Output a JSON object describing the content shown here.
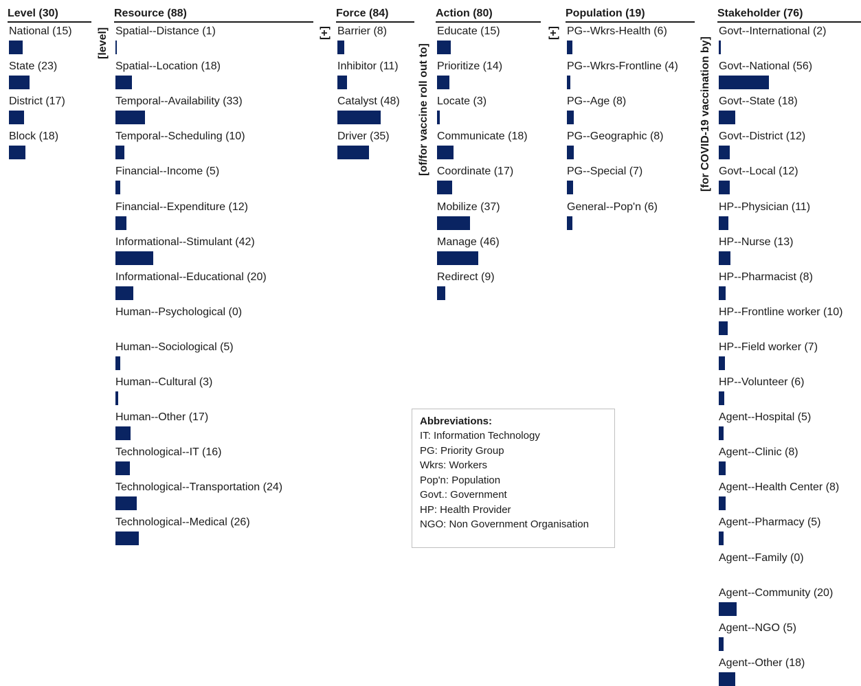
{
  "colors": {
    "bar": "#0a2462",
    "text": "#1a1a1a",
    "rule": "#1a1a1a",
    "box_border": "#bfbfbf"
  },
  "columns": [
    {
      "id": "level",
      "header": "Level (30)",
      "items": [
        {
          "label": "National (15)",
          "value": 15
        },
        {
          "label": "State (23)",
          "value": 23
        },
        {
          "label": "District (17)",
          "value": 17
        },
        {
          "label": "Block (18)",
          "value": 18
        }
      ]
    },
    {
      "id": "resource",
      "header": "Resource (88)",
      "items": [
        {
          "label": "Spatial--Distance (1)",
          "value": 1
        },
        {
          "label": "Spatial--Location (18)",
          "value": 18
        },
        {
          "label": "Temporal--Availability (33)",
          "value": 33
        },
        {
          "label": "Temporal--Scheduling (10)",
          "value": 10
        },
        {
          "label": "Financial--Income (5)",
          "value": 5
        },
        {
          "label": "Financial--Expenditure (12)",
          "value": 12
        },
        {
          "label": "Informational--Stimulant (42)",
          "value": 42
        },
        {
          "label": "Informational--Educational (20)",
          "value": 20
        },
        {
          "label": "Human--Psychological (0)",
          "value": 0
        },
        {
          "label": "Human--Sociological (5)",
          "value": 5
        },
        {
          "label": "Human--Cultural (3)",
          "value": 3
        },
        {
          "label": "Human--Other (17)",
          "value": 17
        },
        {
          "label": "Technological--IT (16)",
          "value": 16
        },
        {
          "label": "Technological--Transportation (24)",
          "value": 24
        },
        {
          "label": "Technological--Medical (26)",
          "value": 26
        }
      ]
    },
    {
      "id": "force",
      "header": "Force (84)",
      "items": [
        {
          "label": "Barrier (8)",
          "value": 8
        },
        {
          "label": "Inhibitor (11)",
          "value": 11
        },
        {
          "label": "Catalyst (48)",
          "value": 48
        },
        {
          "label": "Driver (35)",
          "value": 35
        }
      ]
    },
    {
      "id": "action",
      "header": "Action (80)",
      "items": [
        {
          "label": "Educate (15)",
          "value": 15
        },
        {
          "label": "Prioritize (14)",
          "value": 14
        },
        {
          "label": "Locate (3)",
          "value": 3
        },
        {
          "label": "Communicate (18)",
          "value": 18
        },
        {
          "label": "Coordinate (17)",
          "value": 17
        },
        {
          "label": "Mobilize (37)",
          "value": 37
        },
        {
          "label": "Manage (46)",
          "value": 46
        },
        {
          "label": "Redirect (9)",
          "value": 9
        }
      ]
    },
    {
      "id": "population",
      "header": "Population (19)",
      "items": [
        {
          "label": "PG--Wkrs-Health (6)",
          "value": 6
        },
        {
          "label": "PG--Wkrs-Frontline (4)",
          "value": 4
        },
        {
          "label": "PG--Age (8)",
          "value": 8
        },
        {
          "label": "PG--Geographic (8)",
          "value": 8
        },
        {
          "label": "PG--Special (7)",
          "value": 7
        },
        {
          "label": "General--Pop'n (6)",
          "value": 6
        }
      ]
    },
    {
      "id": "stakeholder",
      "header": "Stakeholder (76)",
      "items": [
        {
          "label": "Govt--International (2)",
          "value": 2
        },
        {
          "label": "Govt--National (56)",
          "value": 56
        },
        {
          "label": "Govt--State (18)",
          "value": 18
        },
        {
          "label": "Govt--District (12)",
          "value": 12
        },
        {
          "label": "Govt--Local (12)",
          "value": 12
        },
        {
          "label": "HP--Physician (11)",
          "value": 11
        },
        {
          "label": "HP--Nurse (13)",
          "value": 13
        },
        {
          "label": "HP--Pharmacist (8)",
          "value": 8
        },
        {
          "label": "HP--Frontline worker (10)",
          "value": 10
        },
        {
          "label": "HP--Field worker (7)",
          "value": 7
        },
        {
          "label": "HP--Volunteer (6)",
          "value": 6
        },
        {
          "label": "Agent--Hospital (5)",
          "value": 5
        },
        {
          "label": "Agent--Clinic (8)",
          "value": 8
        },
        {
          "label": "Agent--Health Center (8)",
          "value": 8
        },
        {
          "label": "Agent--Pharmacy (5)",
          "value": 5
        },
        {
          "label": "Agent--Family (0)",
          "value": 0
        },
        {
          "label": "Agent--Community (20)",
          "value": 20
        },
        {
          "label": "Agent--NGO (5)",
          "value": 5
        },
        {
          "label": "Agent--Other (18)",
          "value": 18
        }
      ]
    }
  ],
  "connectors": {
    "level": "[level]",
    "plus_1": "[+]",
    "vaccine": "[of/for vaccine roll out to]",
    "plus_2": "[+]",
    "covid": "[for COVID-19 vaccination by]"
  },
  "abbreviations": {
    "title": "Abbreviations:",
    "lines": [
      "IT: Information Technology",
      "PG: Priority Group",
      "Wkrs: Workers",
      "Pop'n: Population",
      "Govt.: Government",
      "HP: Health Provider",
      "NGO: Non Government Organisation"
    ]
  }
}
